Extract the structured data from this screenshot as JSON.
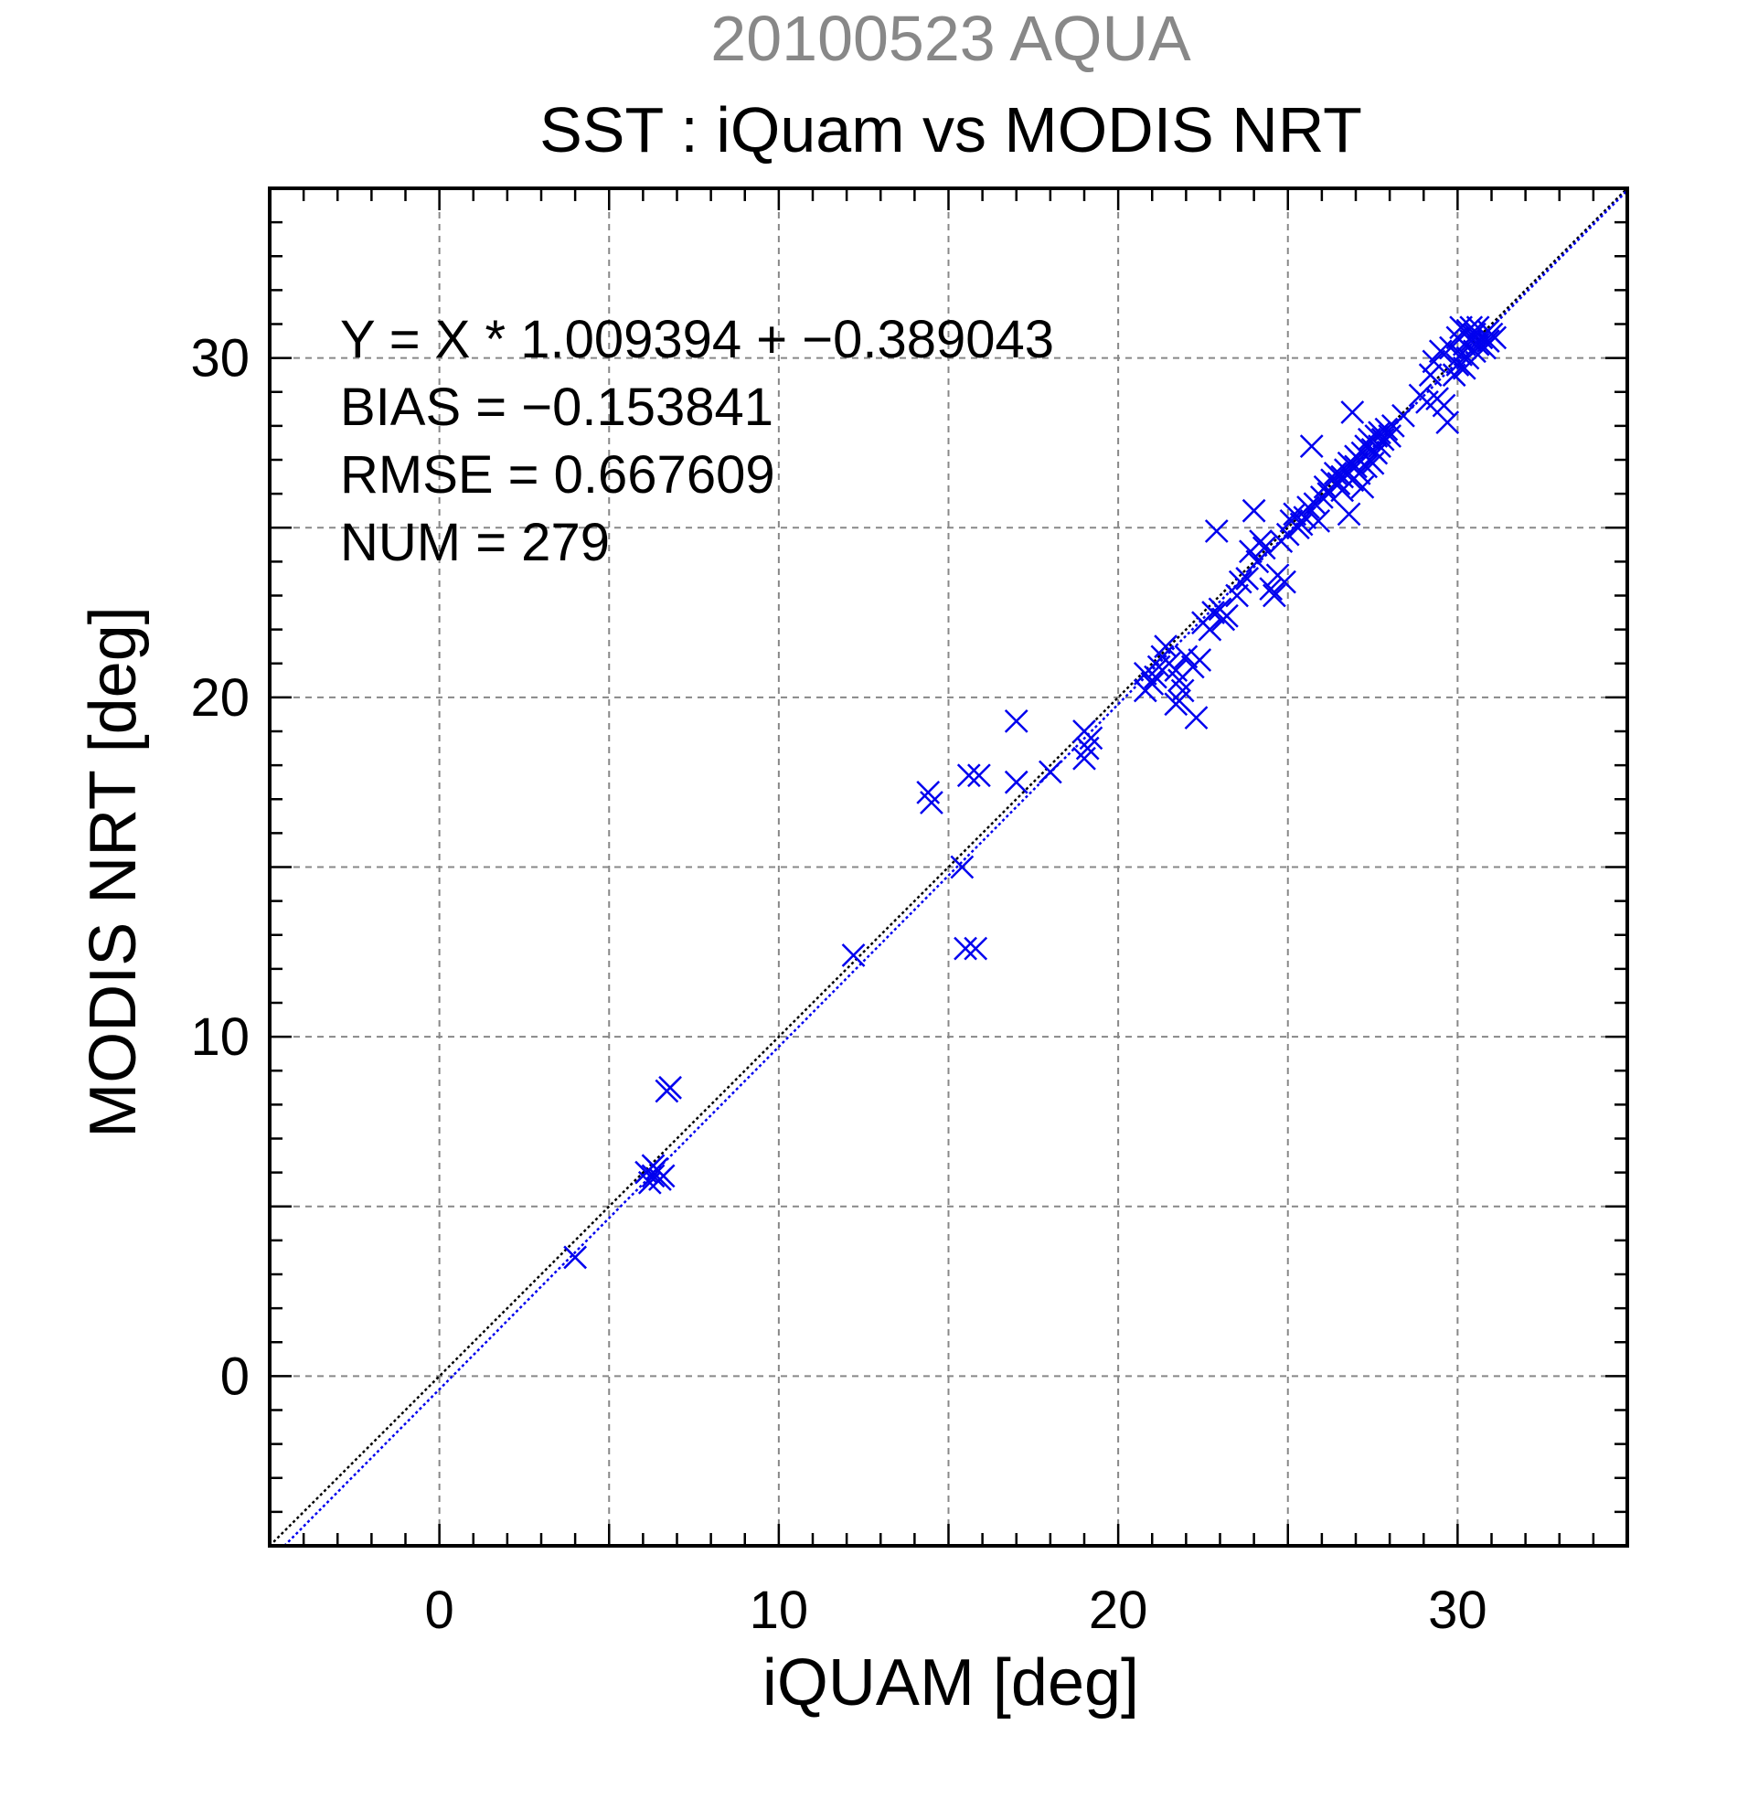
{
  "chart_data": {
    "type": "scatter",
    "supertitle": "20100523 AQUA",
    "title": "SST : iQuam vs MODIS NRT",
    "xlabel": "iQUAM [deg]",
    "ylabel": "MODIS NRT [deg]",
    "xlim": [
      -5,
      35
    ],
    "ylim": [
      -5,
      35
    ],
    "xticks": [
      0,
      10,
      20,
      30
    ],
    "yticks": [
      0,
      10,
      20,
      30
    ],
    "grid": true,
    "annotations": [
      "Y = X * 1.009394 + −0.389043",
      "BIAS = −0.153841",
      "RMSE = 0.667609",
      "NUM = 279"
    ],
    "regression": {
      "slope": 1.009394,
      "intercept": -0.389043
    },
    "colors": {
      "points": "#0000ee",
      "fit_line": "#0000ee",
      "identity_line": "#000000",
      "supertitle": "#888888",
      "grid": "#888888"
    },
    "points": [
      [
        4.0,
        3.5
      ],
      [
        6.1,
        6.0
      ],
      [
        6.3,
        5.9
      ],
      [
        6.4,
        6.1
      ],
      [
        6.5,
        5.8
      ],
      [
        6.2,
        5.7
      ],
      [
        6.6,
        5.9
      ],
      [
        6.3,
        6.2
      ],
      [
        6.7,
        8.4
      ],
      [
        6.8,
        8.5
      ],
      [
        12.2,
        12.4
      ],
      [
        14.4,
        17.2
      ],
      [
        14.5,
        16.9
      ],
      [
        15.4,
        15.0
      ],
      [
        15.6,
        17.7
      ],
      [
        15.9,
        17.7
      ],
      [
        15.5,
        12.6
      ],
      [
        15.8,
        12.6
      ],
      [
        17.0,
        19.3
      ],
      [
        17.0,
        17.5
      ],
      [
        18.0,
        17.8
      ],
      [
        19.0,
        18.2
      ],
      [
        19.1,
        18.5
      ],
      [
        19.2,
        18.8
      ],
      [
        19.0,
        19.0
      ],
      [
        20.8,
        20.7
      ],
      [
        20.8,
        20.2
      ],
      [
        21.0,
        20.4
      ],
      [
        21.1,
        20.6
      ],
      [
        21.2,
        20.9
      ],
      [
        21.3,
        21.2
      ],
      [
        21.4,
        21.5
      ],
      [
        21.5,
        21.0
      ],
      [
        21.7,
        20.8
      ],
      [
        21.8,
        20.5
      ],
      [
        21.8,
        19.9
      ],
      [
        21.9,
        20.2
      ],
      [
        21.7,
        19.8
      ],
      [
        22.0,
        21.2
      ],
      [
        22.2,
        20.9
      ],
      [
        22.3,
        19.4
      ],
      [
        22.4,
        21.1
      ],
      [
        22.5,
        22.2
      ],
      [
        22.7,
        22.0
      ],
      [
        22.8,
        22.5
      ],
      [
        22.9,
        24.9
      ],
      [
        23.0,
        22.6
      ],
      [
        23.1,
        22.3
      ],
      [
        23.2,
        22.4
      ],
      [
        23.5,
        23.0
      ],
      [
        23.6,
        23.4
      ],
      [
        23.8,
        23.5
      ],
      [
        23.9,
        24.3
      ],
      [
        24.0,
        25.5
      ],
      [
        24.1,
        24.0
      ],
      [
        24.2,
        24.6
      ],
      [
        24.3,
        24.4
      ],
      [
        24.5,
        23.2
      ],
      [
        24.6,
        23.0
      ],
      [
        24.7,
        23.6
      ],
      [
        24.8,
        24.6
      ],
      [
        24.9,
        23.4
      ],
      [
        25.0,
        24.8
      ],
      [
        25.1,
        25.2
      ],
      [
        25.2,
        25.4
      ],
      [
        25.3,
        25.0
      ],
      [
        25.4,
        25.1
      ],
      [
        25.5,
        25.3
      ],
      [
        25.6,
        25.6
      ],
      [
        25.7,
        27.4
      ],
      [
        25.8,
        25.7
      ],
      [
        25.9,
        25.2
      ],
      [
        26.0,
        25.9
      ],
      [
        26.1,
        26.2
      ],
      [
        26.2,
        26.0
      ],
      [
        26.3,
        26.4
      ],
      [
        26.4,
        26.6
      ],
      [
        26.5,
        26.3
      ],
      [
        26.6,
        26.5
      ],
      [
        26.6,
        26.1
      ],
      [
        26.7,
        26.7
      ],
      [
        26.8,
        26.9
      ],
      [
        26.8,
        25.4
      ],
      [
        26.9,
        26.4
      ],
      [
        26.9,
        28.4
      ],
      [
        27.0,
        26.8
      ],
      [
        27.0,
        27.1
      ],
      [
        27.1,
        26.6
      ],
      [
        27.1,
        27.0
      ],
      [
        27.2,
        27.2
      ],
      [
        27.2,
        26.2
      ],
      [
        27.3,
        27.4
      ],
      [
        27.3,
        26.8
      ],
      [
        27.4,
        27.6
      ],
      [
        27.4,
        27.0
      ],
      [
        27.5,
        27.3
      ],
      [
        27.5,
        26.9
      ],
      [
        27.6,
        27.7
      ],
      [
        27.6,
        27.2
      ],
      [
        27.7,
        27.8
      ],
      [
        27.7,
        27.4
      ],
      [
        27.8,
        27.6
      ],
      [
        27.9,
        27.9
      ],
      [
        28.0,
        27.7
      ],
      [
        28.1,
        28.0
      ],
      [
        28.4,
        28.3
      ],
      [
        28.9,
        28.9
      ],
      [
        29.1,
        28.7
      ],
      [
        29.2,
        29.5
      ],
      [
        29.3,
        29.9
      ],
      [
        29.4,
        28.8
      ],
      [
        29.5,
        30.2
      ],
      [
        29.6,
        28.6
      ],
      [
        29.7,
        28.1
      ],
      [
        29.8,
        30.3
      ],
      [
        29.9,
        29.5
      ],
      [
        30.0,
        30.6
      ],
      [
        30.0,
        29.8
      ],
      [
        30.1,
        30.9
      ],
      [
        30.1,
        30.1
      ],
      [
        30.2,
        30.4
      ],
      [
        30.2,
        29.7
      ],
      [
        30.3,
        30.8
      ],
      [
        30.3,
        30.0
      ],
      [
        30.4,
        30.5
      ],
      [
        30.4,
        30.9
      ],
      [
        30.5,
        30.2
      ],
      [
        30.5,
        30.7
      ],
      [
        30.6,
        30.4
      ],
      [
        30.6,
        30.9
      ],
      [
        30.7,
        30.6
      ],
      [
        30.8,
        30.3
      ],
      [
        30.9,
        30.8
      ],
      [
        30.9,
        30.5
      ],
      [
        31.0,
        30.7
      ],
      [
        31.1,
        30.6
      ]
    ]
  }
}
